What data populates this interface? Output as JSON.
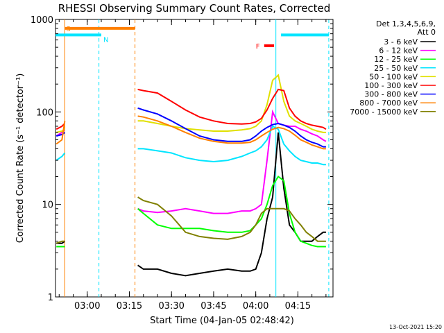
{
  "chart_data": {
    "type": "line",
    "title": "RHESSI Observing Summary Count Rates, Corrected",
    "xlabel": "Start Time (04-Jan-05 02:48:42)",
    "ylabel": "Corrected Count Rate (s⁻¹ detector⁻¹)",
    "y_scale": "log",
    "ylim": [
      1,
      1000
    ],
    "xlim": [
      "02:48:42",
      "04:27:30"
    ],
    "x_ticks": [
      "03:00",
      "03:15",
      "03:30",
      "03:45",
      "04:00",
      "04:15"
    ],
    "y_ticks": [
      "1",
      "10",
      "100",
      "1000"
    ],
    "grid": false,
    "legend_position": "right",
    "legend_header": [
      "Det 1,3,4,5,6,9,",
      "Att 0"
    ],
    "footer_stamp": "13-Oct-2021 15:20",
    "markers": [
      {
        "label": "S",
        "color": "#ff8000",
        "from": "02:52:00",
        "to": "03:17:00",
        "level": 800
      },
      {
        "label": "N",
        "color": "#00e5ff",
        "from": "02:48:42",
        "to": "03:05:00",
        "level": 680
      },
      {
        "label": "F",
        "color": "#ff0000",
        "from": "04:03:00",
        "to": "04:06:30",
        "level": 520
      },
      {
        "label": "",
        "color": "#00e5ff",
        "from": "04:09:00",
        "to": "04:26:00",
        "level": 680
      }
    ],
    "vlines": [
      {
        "time": "02:52:00",
        "color": "#ff8000",
        "style": "solid"
      },
      {
        "time": "03:04:10",
        "color": "#00e5ff",
        "style": "dashed"
      },
      {
        "time": "03:17:00",
        "color": "#ff8000",
        "style": "dashed"
      },
      {
        "time": "04:07:10",
        "color": "#00e5ff",
        "style": "solid"
      },
      {
        "time": "04:26:00",
        "color": "#00e5ff",
        "style": "dashed"
      }
    ],
    "series": [
      {
        "name": "3 - 6 keV",
        "color": "#000000",
        "x": [
          "02:49",
          "02:51",
          "02:52",
          "03:18",
          "03:20",
          "03:25",
          "03:30",
          "03:35",
          "03:40",
          "03:45",
          "03:50",
          "03:55",
          "03:58",
          "04:00",
          "04:02",
          "04:04",
          "04:06",
          "04:08",
          "04:10",
          "04:12",
          "04:14",
          "04:16",
          "04:18",
          "04:20",
          "04:22",
          "04:24",
          "04:25"
        ],
        "values": [
          3.8,
          3.8,
          4,
          2.2,
          2,
          2,
          1.8,
          1.7,
          1.8,
          1.9,
          2,
          1.9,
          1.9,
          2,
          3,
          7,
          12,
          60,
          15,
          6,
          5,
          4,
          4,
          4,
          4.5,
          5,
          5
        ]
      },
      {
        "name": "6 - 12 keV",
        "color": "#ff00ff",
        "x": [
          "02:49",
          "02:51",
          "02:52",
          "03:18",
          "03:20",
          "03:25",
          "03:30",
          "03:35",
          "03:40",
          "03:45",
          "03:50",
          "03:55",
          "03:58",
          "04:00",
          "04:02",
          "04:04",
          "04:06",
          "04:08",
          "04:10",
          "04:12",
          "04:14",
          "04:16",
          "04:18",
          "04:20",
          "04:22",
          "04:24",
          "04:25"
        ],
        "values": [
          55,
          60,
          65,
          9,
          8.5,
          8.2,
          8.5,
          9,
          8.5,
          8,
          8,
          8.5,
          8.5,
          9,
          10,
          30,
          100,
          75,
          72,
          70,
          70,
          65,
          62,
          58,
          55,
          50,
          48
        ]
      },
      {
        "name": "12 - 25 keV",
        "color": "#00ff00",
        "x": [
          "02:49",
          "02:51",
          "02:52",
          "03:18",
          "03:20",
          "03:25",
          "03:30",
          "03:35",
          "03:40",
          "03:45",
          "03:50",
          "03:55",
          "03:58",
          "04:00",
          "04:02",
          "04:04",
          "04:06",
          "04:08",
          "04:10",
          "04:12",
          "04:14",
          "04:16",
          "04:18",
          "04:20",
          "04:22",
          "04:24",
          "04:25"
        ],
        "values": [
          3.5,
          3.5,
          3.5,
          9,
          8,
          6,
          5.5,
          5.5,
          5.5,
          5.2,
          5,
          5,
          5.2,
          6,
          7,
          10,
          16,
          20,
          18,
          8,
          5,
          4,
          3.8,
          3.6,
          3.5,
          3.5,
          3.5
        ]
      },
      {
        "name": "25 - 50 keV",
        "color": "#00e5ff",
        "x": [
          "02:49",
          "02:51",
          "02:52",
          "03:18",
          "03:20",
          "03:25",
          "03:30",
          "03:35",
          "03:40",
          "03:45",
          "03:50",
          "03:55",
          "03:58",
          "04:00",
          "04:02",
          "04:04",
          "04:06",
          "04:08",
          "04:10",
          "04:12",
          "04:14",
          "04:16",
          "04:18",
          "04:20",
          "04:22",
          "04:24",
          "04:25"
        ],
        "values": [
          30,
          33,
          36,
          40,
          40,
          38,
          36,
          32,
          30,
          29,
          30,
          33,
          36,
          38,
          42,
          50,
          70,
          65,
          45,
          38,
          33,
          30,
          29,
          28,
          28,
          27,
          27
        ]
      },
      {
        "name": "50 - 100 keV",
        "color": "#e0e000",
        "x": [
          "02:49",
          "02:51",
          "02:52",
          "03:18",
          "03:20",
          "03:25",
          "03:30",
          "03:35",
          "03:40",
          "03:45",
          "03:50",
          "03:55",
          "03:58",
          "04:00",
          "04:02",
          "04:04",
          "04:06",
          "04:08",
          "04:10",
          "04:12",
          "04:14",
          "04:16",
          "04:18",
          "04:20",
          "04:22",
          "04:24",
          "04:25"
        ],
        "values": [
          60,
          62,
          65,
          80,
          80,
          75,
          70,
          66,
          64,
          62,
          62,
          64,
          66,
          70,
          80,
          120,
          220,
          250,
          130,
          90,
          80,
          75,
          70,
          65,
          62,
          60,
          60
        ]
      },
      {
        "name": "100 - 300 keV",
        "color": "#ff0000",
        "x": [
          "02:49",
          "02:51",
          "02:52",
          "03:18",
          "03:20",
          "03:25",
          "03:30",
          "03:35",
          "03:40",
          "03:45",
          "03:50",
          "03:55",
          "03:58",
          "04:00",
          "04:02",
          "04:04",
          "04:06",
          "04:08",
          "04:10",
          "04:12",
          "04:14",
          "04:16",
          "04:18",
          "04:20",
          "04:22",
          "04:24",
          "04:25"
        ],
        "values": [
          65,
          70,
          75,
          175,
          170,
          160,
          130,
          105,
          88,
          80,
          75,
          74,
          75,
          78,
          85,
          105,
          140,
          175,
          170,
          110,
          90,
          80,
          75,
          72,
          70,
          68,
          65
        ]
      },
      {
        "name": "300 - 800 keV",
        "color": "#0000ff",
        "x": [
          "02:49",
          "02:51",
          "02:52",
          "03:18",
          "03:20",
          "03:25",
          "03:30",
          "03:35",
          "03:40",
          "03:45",
          "03:50",
          "03:55",
          "03:58",
          "04:00",
          "04:02",
          "04:04",
          "04:06",
          "04:08",
          "04:10",
          "04:12",
          "04:14",
          "04:16",
          "04:18",
          "04:20",
          "04:22",
          "04:24",
          "04:25"
        ],
        "values": [
          55,
          57,
          60,
          110,
          105,
          95,
          80,
          66,
          55,
          50,
          48,
          48,
          50,
          55,
          62,
          68,
          73,
          75,
          72,
          68,
          62,
          55,
          50,
          47,
          45,
          42,
          42
        ]
      },
      {
        "name": "800 - 7000 keV",
        "color": "#ff8000",
        "x": [
          "02:49",
          "02:51",
          "02:52",
          "03:18",
          "03:20",
          "03:25",
          "03:30",
          "03:35",
          "03:40",
          "03:45",
          "03:50",
          "03:55",
          "03:58",
          "04:00",
          "04:02",
          "04:04",
          "04:06",
          "04:08",
          "04:10",
          "04:12",
          "04:14",
          "04:16",
          "04:18",
          "04:20",
          "04:22",
          "04:24",
          "04:25"
        ],
        "values": [
          45,
          50,
          80,
          90,
          88,
          80,
          70,
          60,
          52,
          48,
          46,
          46,
          47,
          50,
          55,
          60,
          65,
          68,
          66,
          62,
          56,
          50,
          47,
          44,
          42,
          40,
          40
        ]
      },
      {
        "name": "7000 - 15000 keV",
        "color": "#808000",
        "x": [
          "02:49",
          "02:51",
          "02:52",
          "03:18",
          "03:20",
          "03:25",
          "03:30",
          "03:35",
          "03:40",
          "03:45",
          "03:50",
          "03:55",
          "03:58",
          "04:00",
          "04:02",
          "04:04",
          "04:06",
          "04:08",
          "04:10",
          "04:12",
          "04:14",
          "04:16",
          "04:18",
          "04:20",
          "04:22",
          "04:24",
          "04:25"
        ],
        "values": [
          3.8,
          4,
          4,
          12,
          11,
          10,
          7.5,
          5,
          4.5,
          4.3,
          4.2,
          4.5,
          5,
          6,
          8,
          9,
          9,
          9,
          9,
          8.5,
          7,
          6,
          5,
          4.5,
          4,
          4,
          4
        ]
      }
    ]
  }
}
